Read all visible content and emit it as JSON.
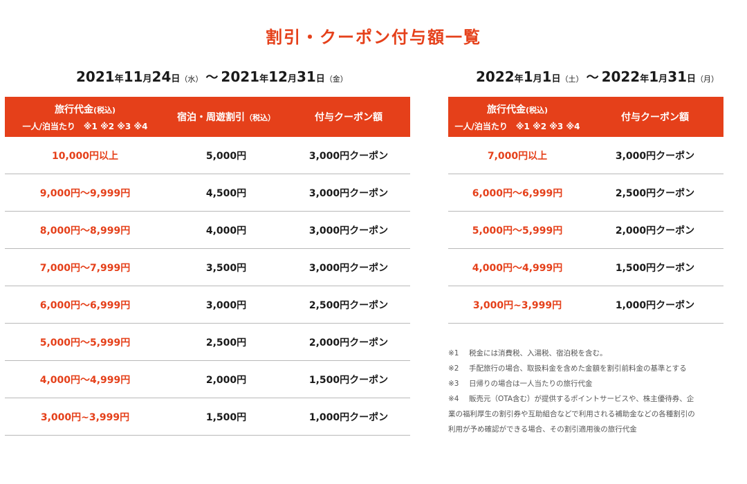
{
  "title": "割引・クーポン付与額一覧",
  "period1": {
    "start": {
      "year": "2021",
      "y_unit": "年",
      "month": "11",
      "m_unit": "月",
      "day": "24",
      "d_unit": "日",
      "weekday": "（水）"
    },
    "tilde": "～",
    "end": {
      "year": "2021",
      "y_unit": "年",
      "month": "12",
      "m_unit": "月",
      "day": "31",
      "d_unit": "日",
      "weekday": "（金）"
    }
  },
  "period2": {
    "start": {
      "year": "2022",
      "y_unit": "年",
      "month": "1",
      "m_unit": "月",
      "day": "1",
      "d_unit": "日",
      "weekday": "（土）"
    },
    "tilde": "～",
    "end": {
      "year": "2022",
      "y_unit": "年",
      "month": "1",
      "m_unit": "月",
      "day": "31",
      "d_unit": "日",
      "weekday": "（月）"
    }
  },
  "table1": {
    "header": {
      "col1_line1": "旅行代金",
      "col1_tax": "(税込)",
      "col1_line2": "一人/泊当たり　※1 ※2 ※3 ※4",
      "col2": "宿泊・周遊割引",
      "col2_tax": "（税込）",
      "col3": "付与クーポン額"
    },
    "rows": [
      {
        "price": "10,000円以上",
        "discount": "5,000円",
        "coupon": "3,000円クーポン"
      },
      {
        "price": "9,000円～9,999円",
        "discount": "4,500円",
        "coupon": "3,000円クーポン"
      },
      {
        "price": "8,000円～8,999円",
        "discount": "4,000円",
        "coupon": "3,000円クーポン"
      },
      {
        "price": "7,000円～7,999円",
        "discount": "3,500円",
        "coupon": "3,000円クーポン"
      },
      {
        "price": "6,000円～6,999円",
        "discount": "3,000円",
        "coupon": "2,500円クーポン"
      },
      {
        "price": "5,000円～5,999円",
        "discount": "2,500円",
        "coupon": "2,000円クーポン"
      },
      {
        "price": "4,000円～4,999円",
        "discount": "2,000円",
        "coupon": "1,500円クーポン"
      },
      {
        "price": "3,000円~3,999円",
        "discount": "1,500円",
        "coupon": "1,000円クーポン"
      }
    ]
  },
  "table2": {
    "header": {
      "col1_line1": "旅行代金",
      "col1_tax": "(税込)",
      "col1_line2": "一人/泊当たり　※1 ※2 ※3 ※4",
      "col2": "付与クーポン額"
    },
    "rows": [
      {
        "price": "7,000円以上",
        "coupon": "3,000円クーポン"
      },
      {
        "price": "6,000円～6,999円",
        "coupon": "2,500円クーポン"
      },
      {
        "price": "5,000円～5,999円",
        "coupon": "2,000円クーポン"
      },
      {
        "price": "4,000円～4,999円",
        "coupon": "1,500円クーポン"
      },
      {
        "price": "3,000円~3,999円",
        "coupon": "1,000円クーポン"
      }
    ]
  },
  "notes": [
    {
      "mark": "※1",
      "text": "税金には消費税、入湯税、宿泊税を含む。"
    },
    {
      "mark": "※2",
      "text": "手配旅行の場合、取扱料金を含めた金額を割引前料金の基準とする"
    },
    {
      "mark": "※3",
      "text": "日帰りの場合は一人当たりの旅行代金"
    },
    {
      "mark": "※4",
      "text": "販売元（OTA含む）が提供するポイントサービスや、株主優待券、企"
    },
    {
      "mark": "",
      "text": "業の福利厚生の割引券や互助組合などで利用される補助金などの各種割引の"
    },
    {
      "mark": "",
      "text": "利用が予め確認ができる場合、その割引適用後の旅行代金"
    }
  ],
  "colors": {
    "accent": "#e5401a",
    "rule": "#b8b8b8"
  }
}
